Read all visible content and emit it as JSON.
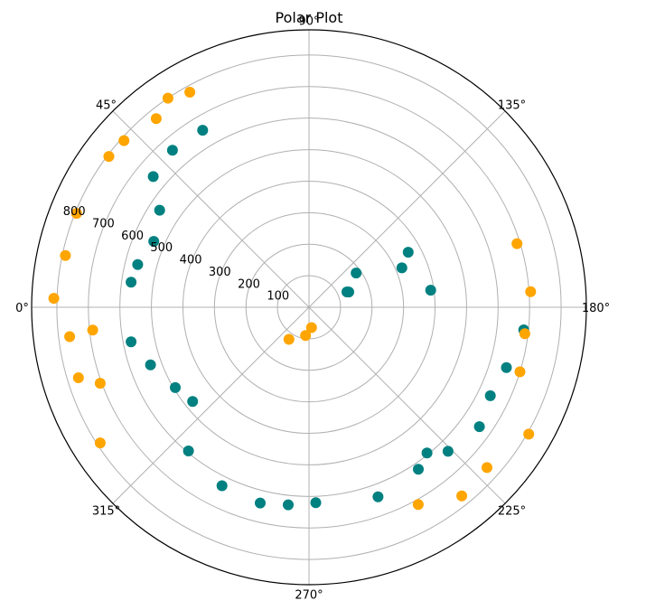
{
  "chart_data": {
    "type": "scatter",
    "projection": "polar",
    "title": "Polar Plot",
    "theta_direction": "clockwise",
    "theta_zero_location": "left",
    "theta_ticks": [
      "0°",
      "45°",
      "90°",
      "135°",
      "180°",
      "225°",
      "270°",
      "315°"
    ],
    "theta_tick_values": [
      0,
      45,
      90,
      135,
      180,
      225,
      270,
      315
    ],
    "r_ticks": [
      "100",
      "200",
      "300",
      "400",
      "500",
      "600",
      "700",
      "800"
    ],
    "r_tick_values": [
      100,
      200,
      300,
      400,
      500,
      600,
      700,
      800
    ],
    "rlim": [
      0,
      880
    ],
    "grid": true,
    "series": [
      {
        "color": "#008080",
        "points": [
          {
            "theta": 8,
            "r": 570
          },
          {
            "theta": 14,
            "r": 560
          },
          {
            "theta": 23,
            "r": 535
          },
          {
            "theta": 33,
            "r": 565
          },
          {
            "theta": 40,
            "r": 645
          },
          {
            "theta": 49,
            "r": 660
          },
          {
            "theta": 59,
            "r": 655
          },
          {
            "theta": 144,
            "r": 185
          },
          {
            "theta": 151,
            "r": 360
          },
          {
            "theta": 157,
            "r": 320
          },
          {
            "theta": 158,
            "r": 130
          },
          {
            "theta": 159,
            "r": 135
          },
          {
            "theta": 172,
            "r": 390
          },
          {
            "theta": 186,
            "r": 685
          },
          {
            "theta": 197,
            "r": 655
          },
          {
            "theta": 206,
            "r": 640
          },
          {
            "theta": 215,
            "r": 660
          },
          {
            "theta": 226,
            "r": 635
          },
          {
            "theta": 231,
            "r": 595
          },
          {
            "theta": 236,
            "r": 620
          },
          {
            "theta": 250,
            "r": 640
          },
          {
            "theta": 268,
            "r": 620
          },
          {
            "theta": 276,
            "r": 630
          },
          {
            "theta": 284,
            "r": 640
          },
          {
            "theta": 296,
            "r": 630
          },
          {
            "theta": 310,
            "r": 595
          },
          {
            "theta": 321,
            "r": 475
          },
          {
            "theta": 329,
            "r": 495
          },
          {
            "theta": 340,
            "r": 535
          },
          {
            "theta": 349,
            "r": 575
          }
        ]
      },
      {
        "color": "#FFA500",
        "points": [
          {
            "theta": 2,
            "r": 810
          },
          {
            "theta": 12,
            "r": 790
          },
          {
            "theta": 22,
            "r": 795
          },
          {
            "theta": 37,
            "r": 795
          },
          {
            "theta": 42,
            "r": 790
          },
          {
            "theta": 51,
            "r": 770
          },
          {
            "theta": 56,
            "r": 800
          },
          {
            "theta": 61,
            "r": 780
          },
          {
            "theta": 163,
            "r": 690
          },
          {
            "theta": 176,
            "r": 705
          },
          {
            "theta": 187,
            "r": 690
          },
          {
            "theta": 197,
            "r": 700
          },
          {
            "theta": 210,
            "r": 805
          },
          {
            "theta": 222,
            "r": 760
          },
          {
            "theta": 231,
            "r": 770
          },
          {
            "theta": 241,
            "r": 715
          },
          {
            "theta": 263,
            "r": 65
          },
          {
            "theta": 277,
            "r": 90
          },
          {
            "theta": 302,
            "r": 120
          },
          {
            "theta": 327,
            "r": 790
          },
          {
            "theta": 340,
            "r": 705
          },
          {
            "theta": 343,
            "r": 765
          },
          {
            "theta": 353,
            "r": 765
          },
          {
            "theta": 354,
            "r": 690
          }
        ]
      }
    ]
  }
}
